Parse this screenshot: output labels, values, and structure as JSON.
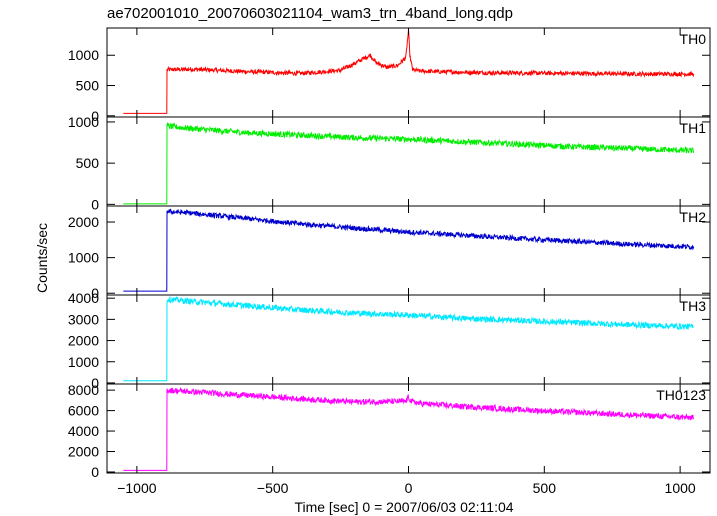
{
  "chart_data": {
    "type": "line",
    "title": "ae702001010_20070603021104_wam3_trn_4band_long.qdp",
    "xlabel": "Time [sec] 0 = 2007/06/03 02:11:04",
    "ylabel": "Counts/sec",
    "xlim": [
      -1110,
      1110
    ],
    "x_ticks": [
      -1000,
      -500,
      0,
      500,
      1000
    ],
    "x_tick_labels": [
      "−1000",
      "−500",
      "0",
      "500",
      "1000"
    ],
    "grid": false,
    "panels": [
      {
        "name": "TH0",
        "color": "#ff0000",
        "ylim": [
          -20,
          1450
        ],
        "y_ticks": [
          0,
          500,
          1000
        ],
        "series": [
          {
            "x": [
              -1050,
              -890,
              -889,
              -800,
              -600,
              -400,
              -250,
              -200,
              -160,
              -140,
              -120,
              -80,
              -40,
              -10,
              0,
              5,
              15,
              40,
              100,
              300,
              600,
              900,
              1050
            ],
            "y": [
              40,
              40,
              760,
              770,
              730,
              700,
              750,
              860,
              960,
              1000,
              880,
              800,
              830,
              960,
              1400,
              1000,
              760,
              740,
              730,
              710,
              700,
              690,
              690
            ]
          }
        ]
      },
      {
        "name": "TH1",
        "color": "#00ee00",
        "ylim": [
          -20,
          1060
        ],
        "y_ticks": [
          0,
          500,
          1000
        ],
        "series": [
          {
            "x": [
              -1050,
              -890,
              -889,
              -800,
              -600,
              -400,
              -200,
              0,
              200,
              400,
              600,
              800,
              1050
            ],
            "y": [
              5,
              5,
              950,
              920,
              870,
              840,
              810,
              790,
              760,
              730,
              700,
              680,
              650
            ]
          }
        ]
      },
      {
        "name": "TH2",
        "color": "#0000cc",
        "ylim": [
          -50,
          2450
        ],
        "y_ticks": [
          0,
          1000,
          2000
        ],
        "series": [
          {
            "x": [
              -1050,
              -890,
              -889,
              -800,
              -600,
              -400,
              -200,
              0,
              200,
              400,
              600,
              800,
              1050
            ],
            "y": [
              60,
              60,
              2300,
              2250,
              2100,
              1950,
              1830,
              1720,
              1630,
              1540,
              1460,
              1380,
              1300
            ]
          }
        ]
      },
      {
        "name": "TH3",
        "color": "#00e8ff",
        "ylim": [
          -50,
          4150
        ],
        "y_ticks": [
          0,
          1000,
          2000,
          3000,
          4000
        ],
        "series": [
          {
            "x": [
              -1050,
              -890,
              -889,
              -800,
              -600,
              -400,
              -200,
              0,
              200,
              400,
              600,
              800,
              1050
            ],
            "y": [
              100,
              100,
              3950,
              3850,
              3650,
              3450,
              3300,
              3200,
              3050,
              2950,
              2850,
              2750,
              2650
            ]
          }
        ]
      },
      {
        "name": "TH0123",
        "color": "#ff00ff",
        "ylim": [
          -100,
          8600
        ],
        "y_ticks": [
          0,
          2000,
          4000,
          6000,
          8000
        ],
        "series": [
          {
            "x": [
              -1050,
              -890,
              -889,
              -800,
              -600,
              -400,
              -200,
              -10,
              0,
              10,
              40,
              200,
              400,
              600,
              800,
              1050
            ],
            "y": [
              150,
              150,
              8000,
              7850,
              7500,
              7150,
              6850,
              6900,
              7300,
              6900,
              6700,
              6400,
              6100,
              5850,
              5600,
              5300
            ]
          }
        ]
      }
    ]
  }
}
